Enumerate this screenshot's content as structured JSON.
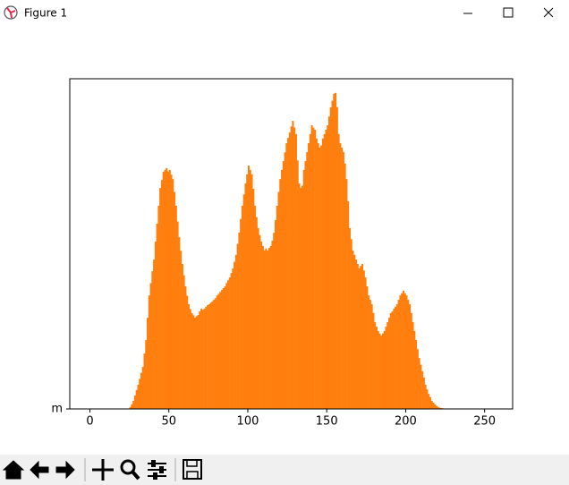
{
  "window": {
    "title": "Figure 1"
  },
  "chart_data": {
    "type": "histogram",
    "color": "#ff7f0e",
    "bins": [
      0,
      1,
      2,
      3,
      4,
      5,
      6,
      7,
      8,
      9,
      10,
      11,
      12,
      13,
      14,
      15,
      16,
      17,
      18,
      19,
      20,
      21,
      22,
      23,
      24,
      25,
      26,
      27,
      28,
      29,
      30,
      31,
      32,
      33,
      34,
      35,
      36,
      37,
      38,
      39,
      40,
      41,
      42,
      43,
      44,
      45,
      46,
      47,
      48,
      49,
      50,
      51,
      52,
      53,
      54,
      55,
      56,
      57,
      58,
      59,
      60,
      61,
      62,
      63,
      64,
      65,
      66,
      67,
      68,
      69,
      70,
      71,
      72,
      73,
      74,
      75,
      76,
      77,
      78,
      79,
      80,
      81,
      82,
      83,
      84,
      85,
      86,
      87,
      88,
      89,
      90,
      91,
      92,
      93,
      94,
      95,
      96,
      97,
      98,
      99,
      100,
      101,
      102,
      103,
      104,
      105,
      106,
      107,
      108,
      109,
      110,
      111,
      112,
      113,
      114,
      115,
      116,
      117,
      118,
      119,
      120,
      121,
      122,
      123,
      124,
      125,
      126,
      127,
      128,
      129,
      130,
      131,
      132,
      133,
      134,
      135,
      136,
      137,
      138,
      139,
      140,
      141,
      142,
      143,
      144,
      145,
      146,
      147,
      148,
      149,
      150,
      151,
      152,
      153,
      154,
      155,
      156,
      157,
      158,
      159,
      160,
      161,
      162,
      163,
      164,
      165,
      166,
      167,
      168,
      169,
      170,
      171,
      172,
      173,
      174,
      175,
      176,
      177,
      178,
      179,
      180,
      181,
      182,
      183,
      184,
      185,
      186,
      187,
      188,
      189,
      190,
      191,
      192,
      193,
      194,
      195,
      196,
      197,
      198,
      199,
      200,
      201,
      202,
      203,
      204,
      205,
      206,
      207,
      208,
      209,
      210,
      211,
      212,
      213,
      214,
      215,
      216,
      217,
      218,
      219,
      220,
      221,
      222,
      223,
      224,
      225,
      226,
      227,
      228,
      229,
      230,
      231,
      232,
      233,
      234,
      235,
      236,
      237,
      238,
      239,
      240,
      241,
      242,
      243,
      244,
      245,
      246,
      247,
      248,
      249,
      250,
      251,
      252,
      253,
      254,
      255,
      256
    ],
    "values": [
      0,
      0,
      0,
      0,
      0,
      0,
      0,
      0,
      0,
      0,
      0,
      0,
      0,
      0,
      0,
      0,
      0,
      0,
      0,
      0,
      0,
      0,
      0,
      0,
      0,
      6,
      15,
      26,
      43,
      60,
      77,
      96,
      115,
      134,
      176,
      219,
      290,
      361,
      400,
      438,
      475,
      532,
      589,
      646,
      703,
      728,
      754,
      760,
      766,
      755,
      760,
      745,
      731,
      690,
      646,
      596,
      546,
      503,
      461,
      425,
      390,
      360,
      333,
      318,
      305,
      298,
      290,
      295,
      299,
      310,
      319,
      315,
      319,
      325,
      330,
      333,
      338,
      342,
      347,
      352,
      361,
      366,
      372,
      378,
      384,
      390,
      400,
      409,
      418,
      432,
      447,
      468,
      490,
      525,
      561,
      604,
      646,
      682,
      717,
      746,
      774,
      760,
      746,
      700,
      646,
      610,
      575,
      553,
      532,
      518,
      504,
      510,
      504,
      512,
      518,
      535,
      560,
      600,
      646,
      690,
      731,
      760,
      788,
      816,
      845,
      862,
      879,
      898,
      916,
      895,
      874,
      790,
      717,
      703,
      710,
      760,
      788,
      817,
      845,
      874,
      902,
      895,
      888,
      860,
      845,
      831,
      838,
      860,
      874,
      888,
      902,
      930,
      959,
      980,
      1002,
      1005,
      960,
      874,
      845,
      831,
      817,
      780,
      731,
      660,
      575,
      540,
      504,
      490,
      475,
      461,
      447,
      455,
      461,
      440,
      418,
      390,
      361,
      347,
      333,
      305,
      276,
      262,
      248,
      240,
      233,
      240,
      248,
      262,
      276,
      290,
      305,
      310,
      319,
      325,
      333,
      347,
      361,
      368,
      376,
      368,
      361,
      347,
      333,
      305,
      276,
      248,
      219,
      190,
      162,
      141,
      120,
      100,
      77,
      62,
      48,
      37,
      26,
      20,
      14,
      10,
      6,
      4,
      3,
      2,
      1,
      1,
      0,
      0,
      0,
      0,
      0,
      0,
      0,
      0,
      0,
      0,
      0,
      0,
      0,
      0,
      0,
      0,
      0,
      0,
      0,
      0,
      0,
      0,
      0,
      0,
      0,
      0,
      0,
      0,
      0,
      0
    ],
    "xlim": [
      -12.75,
      267.75
    ],
    "xticks": [
      0,
      50,
      100,
      150,
      200,
      250
    ],
    "ylim": [
      0,
      1050
    ],
    "yticks": [
      {
        "value": 0,
        "label": "m"
      }
    ]
  }
}
